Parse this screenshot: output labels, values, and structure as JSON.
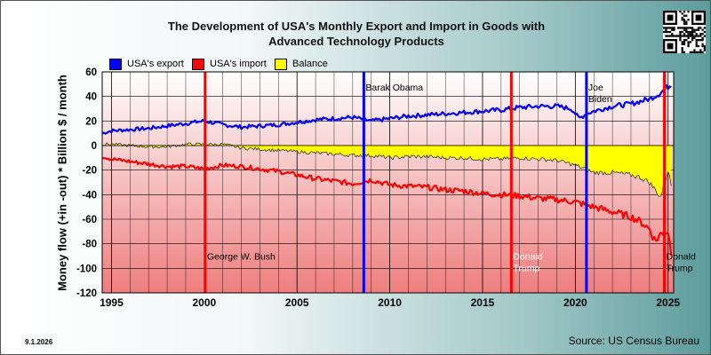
{
  "chart_data": {
    "type": "line",
    "title": [
      "The Development of USA's Monthly Export and Import in Goods with",
      "Advanced Technology Products"
    ],
    "ylabel": "Money flow (+in -out) * Billion $ / month",
    "xlabel": "",
    "x_range": [
      1994.5,
      2025.3
    ],
    "ylim": [
      -120,
      60
    ],
    "y_ticks": [
      60,
      40,
      20,
      0,
      -20,
      -40,
      -60,
      -80,
      -100,
      -120
    ],
    "x_ticks": [
      {
        "value": 1995,
        "label": "1995"
      },
      {
        "value": 2000,
        "label": "2000"
      },
      {
        "value": 2005,
        "label": "2005"
      },
      {
        "value": 2010,
        "label": "2010"
      },
      {
        "value": 2015,
        "label": "2015"
      },
      {
        "value": 2020,
        "label": "2020"
      },
      {
        "value": 2025,
        "label": "2025"
      }
    ],
    "grid": true,
    "legend_position": "top-left",
    "series": [
      {
        "name": "USA's export",
        "color": "#0000ff",
        "x": [
          1994.5,
          1995,
          1996,
          1997,
          1998,
          1999,
          2000,
          2001,
          2002,
          2003,
          2004,
          2005,
          2006,
          2007,
          2008,
          2009,
          2010,
          2011,
          2012,
          2013,
          2014,
          2015,
          2016,
          2017,
          2018,
          2019,
          2019.8,
          2020.2,
          2020.6,
          2021,
          2022,
          2023,
          2023.5,
          2024,
          2024.5,
          2025,
          2025.2
        ],
        "values": [
          10,
          12,
          13,
          14,
          16,
          18,
          20,
          17,
          15,
          16,
          17,
          19,
          21,
          22,
          23,
          20,
          22,
          24,
          25,
          26,
          27,
          28,
          29,
          31,
          32,
          32,
          30,
          22,
          26,
          28,
          32,
          34,
          36,
          38,
          42,
          48,
          50
        ]
      },
      {
        "name": "USA's import",
        "color": "#ff0000",
        "x": [
          1994.5,
          1995,
          1996,
          1997,
          1998,
          1999,
          2000,
          2001,
          2002,
          2003,
          2004,
          2005,
          2006,
          2007,
          2008,
          2009,
          2010,
          2011,
          2012,
          2013,
          2014,
          2015,
          2016,
          2017,
          2018,
          2019,
          2020,
          2021,
          2022,
          2023,
          2023.5,
          2024,
          2024.3,
          2024.6,
          2025,
          2025.2
        ],
        "values": [
          -9,
          -11,
          -13,
          -15,
          -17,
          -17,
          -19,
          -16,
          -17,
          -19,
          -21,
          -24,
          -27,
          -29,
          -31,
          -28,
          -32,
          -33,
          -34,
          -36,
          -37,
          -39,
          -40,
          -41,
          -43,
          -44,
          -46,
          -50,
          -54,
          -58,
          -62,
          -68,
          -78,
          -72,
          -70,
          -90
        ]
      },
      {
        "name": "Balance",
        "color": "#ffff00",
        "x": [
          1994.5,
          1995,
          1996,
          1997,
          1998,
          1999,
          2000,
          2001,
          2002,
          2003,
          2004,
          2005,
          2006,
          2007,
          2008,
          2009,
          2010,
          2011,
          2012,
          2013,
          2014,
          2015,
          2016,
          2017,
          2018,
          2019,
          2020,
          2021,
          2022,
          2023,
          2023.5,
          2024,
          2024.3,
          2024.6,
          2025,
          2025.2
        ],
        "values": [
          1,
          1,
          0,
          -1,
          -1,
          1,
          1,
          1,
          -2,
          -3,
          -4,
          -5,
          -6,
          -7,
          -8,
          -8,
          -10,
          -9,
          -9,
          -10,
          -10,
          -11,
          -11,
          -10,
          -11,
          -12,
          -16,
          -22,
          -22,
          -24,
          -26,
          -30,
          -36,
          -42,
          -20,
          -35
        ]
      }
    ],
    "annotations": [
      {
        "label": "George W. Bush",
        "x": 2000.05,
        "color": "#ff0000",
        "text_color": "#000000",
        "text_y": -93
      },
      {
        "label": "Barak Obama",
        "x": 2008.6,
        "color": "#0000ff",
        "text_color": "#000000",
        "text_y": 45
      },
      {
        "label": "Donald\nTrump",
        "x": 2016.55,
        "color": "#ff0000",
        "text_color": "#ffffff",
        "text_y": -93
      },
      {
        "label": "Joe\nBiden",
        "x": 2020.6,
        "color": "#0000ff",
        "text_color": "#000000",
        "text_y": 45
      },
      {
        "label": "Donald\nTrump",
        "x": 2024.8,
        "color": "#ff0000",
        "text_color": "#000000",
        "text_y": -93
      }
    ]
  },
  "footer": {
    "date": "9.1.2026",
    "source": "Source: US Census Bureau"
  },
  "colors": {
    "plot_top": "#ffffff",
    "plot_bottom": "#ee7e7e",
    "grid": "#000000"
  }
}
